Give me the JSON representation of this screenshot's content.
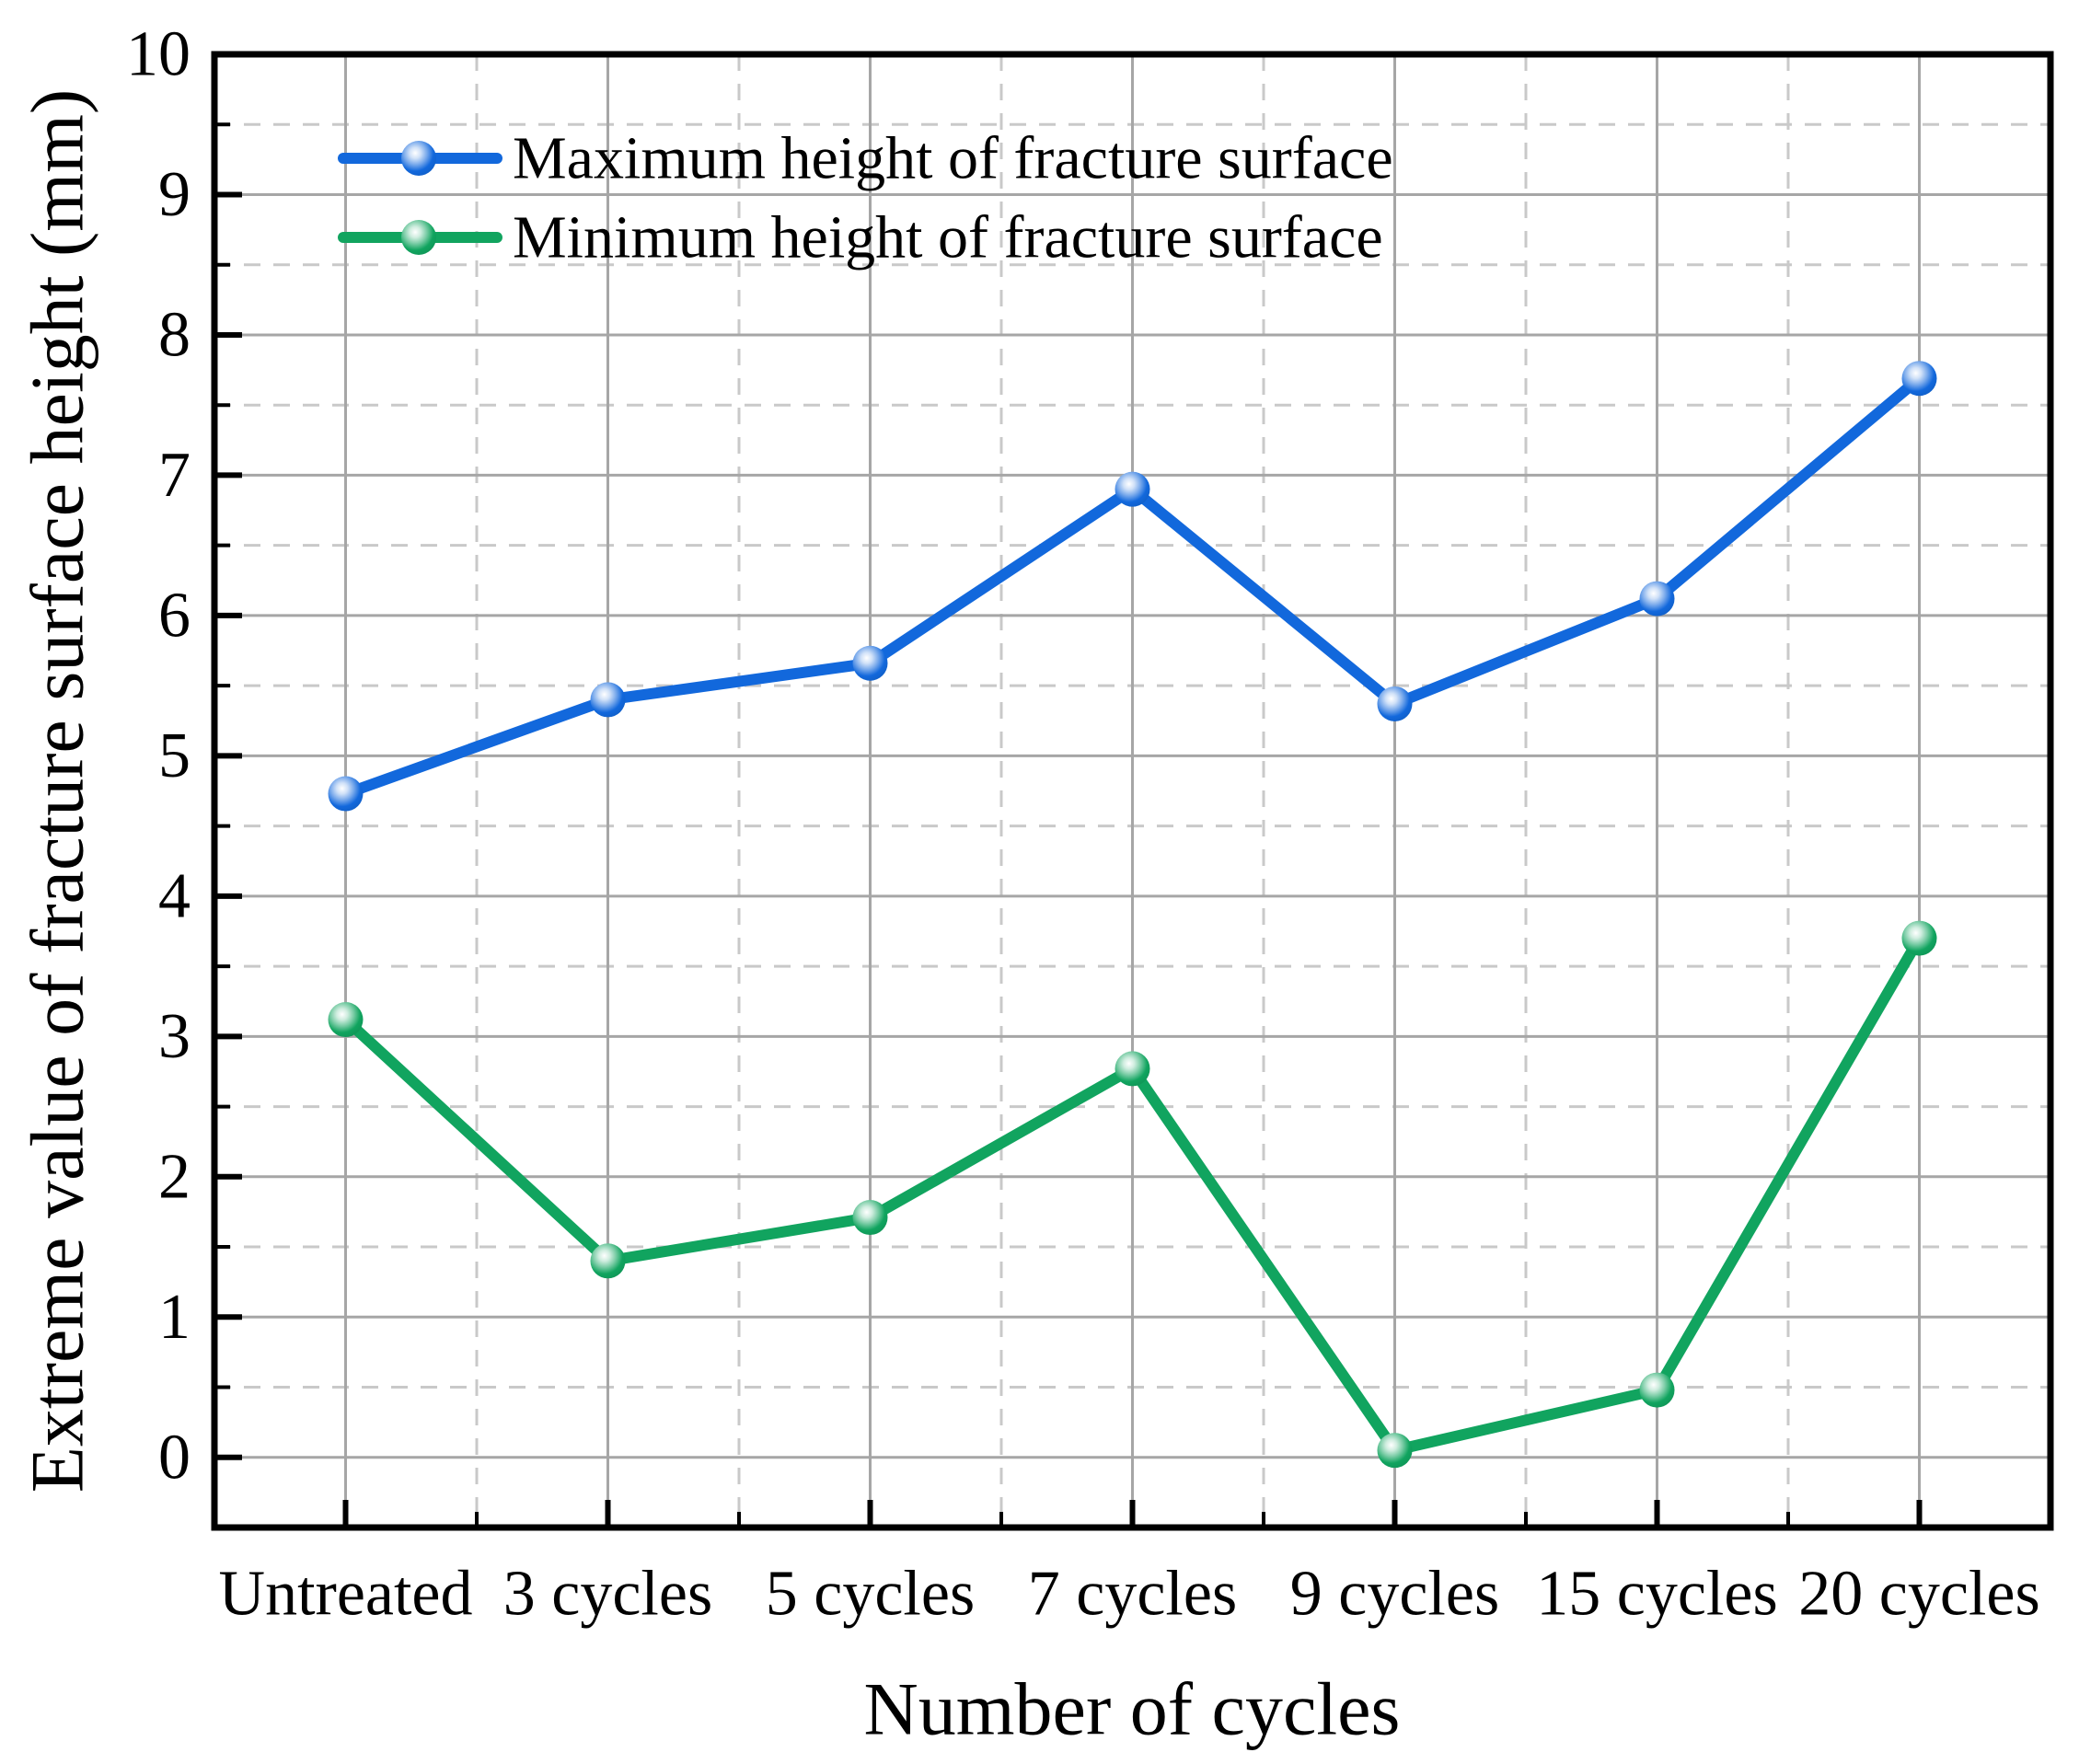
{
  "figure": {
    "background": "#FFFFFF",
    "axis_color": "#000000"
  },
  "chart_data": {
    "type": "line",
    "title": "",
    "xlabel": "Number of cycles",
    "ylabel": "Extreme value of fracture surface height (mm)",
    "categories": [
      "Untreated",
      "3 cycles",
      "5 cycles",
      "7 cycles",
      "9 cycles",
      "15 cycles",
      "20 cycles"
    ],
    "series": [
      {
        "name": "Maximum height of fracture surface",
        "color": "#1268DC",
        "values": [
          4.73,
          5.4,
          5.66,
          6.9,
          5.37,
          6.12,
          7.69
        ]
      },
      {
        "name": "Minimum height of fracture surface",
        "color": "#11A45F",
        "values": [
          3.12,
          1.4,
          1.71,
          2.77,
          0.05,
          0.48,
          3.7
        ]
      }
    ],
    "ylim": [
      -0.5,
      10
    ],
    "ytick_labels": [
      "0",
      "1",
      "2",
      "3",
      "4",
      "5",
      "6",
      "7",
      "8",
      "9",
      "10"
    ],
    "ytick_major_step": 1,
    "ytick_minor_step": 0.5,
    "grid": {
      "on": true,
      "major_color": "#A6A6A6",
      "minor_color": "#C9C9C9",
      "minor_dashed": true
    },
    "legend_position": "top-left-inside"
  }
}
